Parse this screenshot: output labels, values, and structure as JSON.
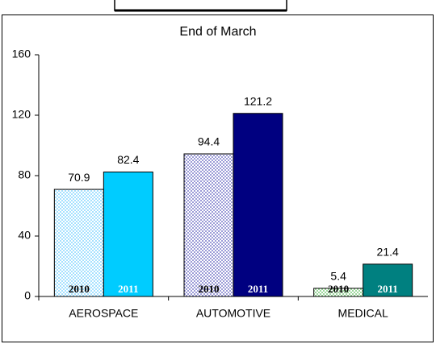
{
  "chart_data": {
    "type": "bar",
    "title": "End of March",
    "categories": [
      "AEROSPACE",
      "AUTOMOTIVE",
      "MEDICAL"
    ],
    "series": [
      {
        "name": "2010",
        "colors": [
          "#66ccff",
          "#5555bb",
          "#55bb55"
        ],
        "pattern": "dotted",
        "label_color": "#000000",
        "values": [
          70.9,
          94.4,
          5.4
        ]
      },
      {
        "name": "2011",
        "colors": [
          "#00ccff",
          "#000080",
          "#008080"
        ],
        "pattern": "solid",
        "label_color": "#ffffff",
        "values": [
          82.4,
          121.2,
          21.4
        ]
      }
    ],
    "ylim": [
      0,
      160
    ],
    "yticks": [
      0,
      40,
      80,
      120,
      160
    ],
    "grid": false
  }
}
